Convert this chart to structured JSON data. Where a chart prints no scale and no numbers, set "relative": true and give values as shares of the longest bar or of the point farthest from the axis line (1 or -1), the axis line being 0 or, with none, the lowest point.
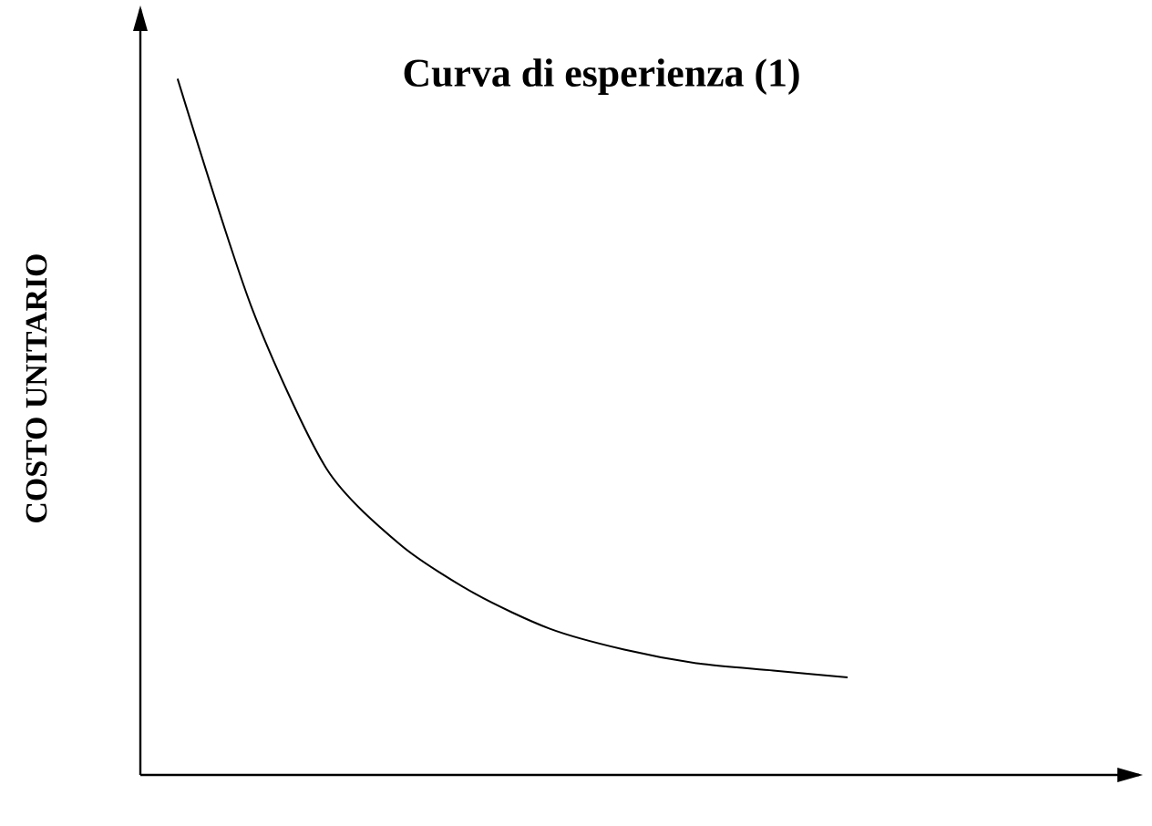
{
  "chart_data": {
    "type": "line",
    "title": "Curva di esperienza (1)",
    "ylabel": "COSTO UNITARIO",
    "relative": true,
    "categories": [
      null,
      null,
      null,
      null,
      null,
      null,
      null,
      null,
      null,
      null
    ],
    "series": [
      {
        "color": "#000000",
        "values": [
          1,
          0.67,
          0.44,
          0.33,
          0.26,
          0.21,
          0.18,
          0.16,
          0.15,
          0.14
        ]
      }
    ]
  }
}
